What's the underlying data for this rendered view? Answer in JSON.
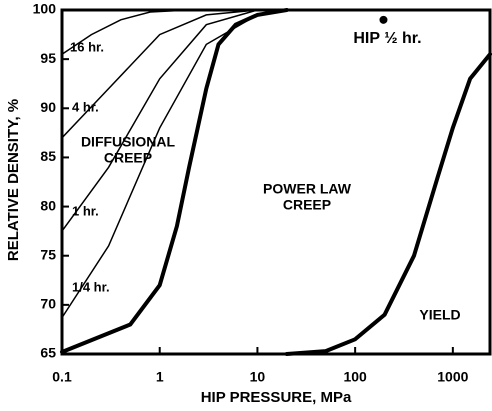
{
  "chart_data": {
    "type": "line",
    "x_label": "HIP PRESSURE, MPa",
    "y_label": "RELATIVE DENSITY, %",
    "xscale": "log",
    "xlim": [
      0.1,
      2400
    ],
    "ylim": [
      65,
      100
    ],
    "xticks": [
      0.1,
      1,
      10,
      100,
      1000
    ],
    "yticks": [
      65,
      70,
      75,
      80,
      85,
      90,
      95,
      100
    ],
    "series": [
      {
        "name": "16 hr.",
        "color": "#000",
        "linewidth": 1.5,
        "x": [
          0.1,
          0.2,
          0.4,
          0.8,
          2
        ],
        "values": [
          95.5,
          97.5,
          99,
          99.8,
          100
        ]
      },
      {
        "name": "4 hr.",
        "color": "#000",
        "linewidth": 1.5,
        "x": [
          0.1,
          0.3,
          1,
          3,
          10
        ],
        "values": [
          87,
          92,
          97.5,
          99.5,
          100
        ]
      },
      {
        "name": "1 hr.",
        "color": "#000",
        "linewidth": 1.5,
        "x": [
          0.1,
          0.3,
          1,
          3,
          10
        ],
        "values": [
          77.5,
          84,
          93,
          98.5,
          100
        ]
      },
      {
        "name": "1/4 hr.",
        "color": "#000",
        "linewidth": 1.5,
        "x": [
          0.1,
          0.3,
          1,
          3,
          10,
          20
        ],
        "values": [
          68.7,
          76,
          88,
          96.5,
          99.5,
          100
        ]
      },
      {
        "color": "#000",
        "linewidth": 4,
        "x": [
          0.1,
          0.5,
          1,
          1.5,
          2,
          3,
          4,
          6,
          10,
          20
        ],
        "values": [
          65.2,
          68,
          72,
          78,
          84,
          92,
          96.5,
          98.5,
          99.5,
          100
        ]
      },
      {
        "color": "#000",
        "linewidth": 4,
        "x": [
          20,
          50,
          100,
          200,
          400,
          700,
          1000,
          1500,
          2400
        ],
        "values": [
          65,
          65.3,
          66.5,
          69,
          75,
          83,
          88,
          93,
          95.5
        ]
      }
    ],
    "points": [
      {
        "label": "HIP ½ hr.",
        "x": 195,
        "y": 99
      }
    ],
    "annotations": [
      [
        "DIFFUSIONAL",
        "CREEP"
      ],
      [
        "POWER LAW",
        "CREEP"
      ],
      [
        "YIELD"
      ]
    ]
  }
}
